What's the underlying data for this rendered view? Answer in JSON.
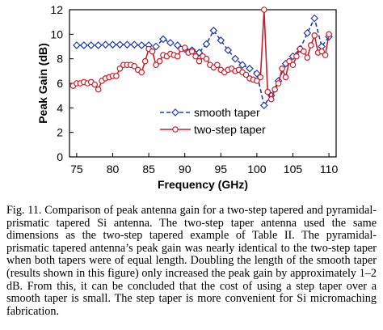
{
  "chart_data": {
    "type": "line",
    "xlabel": "Frequency (GHz)",
    "ylabel": "Peak Gain (dB)",
    "xlim": [
      74,
      111
    ],
    "ylim": [
      0,
      12
    ],
    "xticks": [
      75,
      80,
      85,
      90,
      95,
      100,
      105,
      110
    ],
    "yticks": [
      0,
      2,
      4,
      6,
      8,
      10,
      12
    ],
    "grid": false,
    "legend_position": "lower-center",
    "series": [
      {
        "name": "smooth taper",
        "color": "#1f3fa8",
        "line_style": "dashed",
        "marker": "diamond",
        "x": [
          75,
          76,
          77,
          78,
          79,
          80,
          81,
          82,
          83,
          84,
          85,
          86,
          87,
          88,
          89,
          90,
          91,
          92,
          93,
          94,
          95,
          96,
          97,
          98,
          99,
          100,
          101,
          102,
          103,
          104,
          105,
          106,
          107,
          108,
          109,
          110
        ],
        "y": [
          9.1,
          9.1,
          9.1,
          9.1,
          9.15,
          9.15,
          9.15,
          9.15,
          9.15,
          9.1,
          9.1,
          9.0,
          9.6,
          9.3,
          9.1,
          8.8,
          8.7,
          8.5,
          9.2,
          10.3,
          9.5,
          8.7,
          8.0,
          7.5,
          7.2,
          6.8,
          4.2,
          5.0,
          6.2,
          7.6,
          8.2,
          8.8,
          10.1,
          11.3,
          9.0,
          9.8
        ]
      },
      {
        "name": "two-step taper",
        "color": "#c81e2a",
        "line_style": "solid",
        "marker": "circle",
        "x": [
          74.5,
          75,
          75.5,
          76,
          76.5,
          77,
          77.5,
          78,
          78.5,
          79,
          79.5,
          80,
          80.5,
          81,
          81.5,
          82,
          82.5,
          83,
          83.5,
          84,
          84.5,
          85,
          85.5,
          86,
          86.5,
          87,
          87.5,
          88,
          88.5,
          89,
          89.5,
          90,
          90.5,
          91,
          91.5,
          92,
          92.5,
          93,
          93.5,
          94,
          94.5,
          95,
          95.5,
          96,
          96.5,
          97,
          97.5,
          98,
          98.5,
          99,
          99.5,
          100,
          100.5,
          101,
          101.5,
          102,
          102.5,
          103,
          103.5,
          104,
          104.5,
          105,
          105.5,
          106,
          106.5,
          107,
          107.5,
          108,
          108.5,
          109,
          109.5,
          110
        ],
        "y": [
          5.8,
          6.0,
          6.0,
          6.1,
          6.0,
          6.1,
          5.9,
          5.5,
          6.2,
          6.4,
          6.5,
          6.6,
          6.6,
          7.2,
          7.5,
          7.5,
          7.5,
          7.4,
          7.1,
          6.9,
          7.8,
          8.8,
          8.6,
          7.5,
          7.8,
          8.3,
          8.2,
          8.4,
          8.3,
          8.2,
          8.8,
          8.9,
          8.5,
          8.6,
          8.2,
          7.8,
          8.2,
          8.0,
          7.5,
          7.3,
          7.5,
          7.1,
          6.9,
          7.1,
          7.2,
          7.0,
          7.1,
          6.9,
          6.7,
          6.4,
          6.3,
          6.2,
          6.5,
          12.0,
          5.3,
          4.7,
          5.5,
          6.0,
          7.2,
          6.5,
          7.8,
          7.5,
          8.2,
          8.8,
          8.6,
          8.1,
          9.1,
          9.9,
          8.5,
          8.6,
          8.3,
          10.0
        ]
      }
    ]
  },
  "caption": "Fig. 11.   Comparison of peak antenna gain for a two-step tapered and pyramidal-prismatic tapered Si antenna. The two-step taper antenna used the same dimensions as the two-step tapered example of Table II. The pyramidal-prismatic tapered antenna’s peak gain was nearly identical to the two-step taper when both tapers were of equal length. Doubling the length of the smooth taper (results shown in this figure) only increased the peak gain by approximately 1–2 dB. From this, it can be concluded that the cost of using a step taper over a smooth taper is small. The step taper is more convenient for Si micromaching fabrication."
}
